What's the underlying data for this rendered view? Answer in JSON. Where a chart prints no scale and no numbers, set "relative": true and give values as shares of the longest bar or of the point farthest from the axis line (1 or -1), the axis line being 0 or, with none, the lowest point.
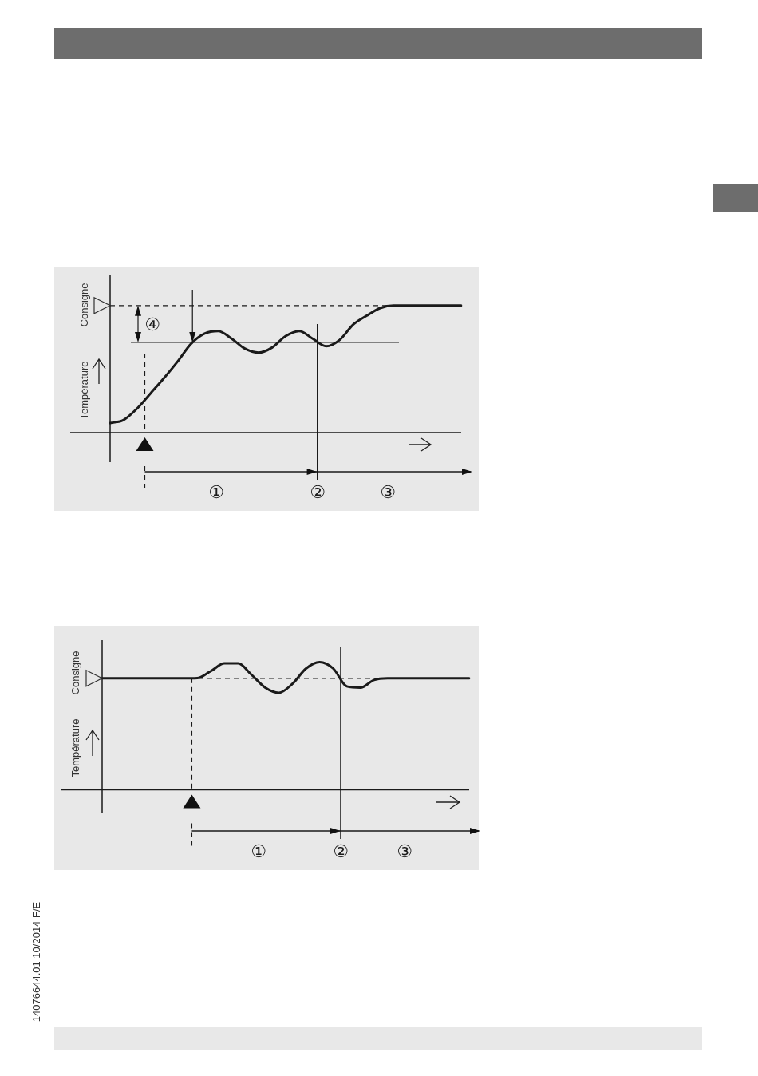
{
  "chart_data": [
    {
      "type": "line",
      "relative": true,
      "ylabel": "Température",
      "categories": [
        null,
        null,
        null,
        null,
        null,
        null,
        null,
        null,
        null,
        null,
        null,
        null,
        null,
        null,
        null,
        null,
        null,
        null,
        null,
        null,
        null,
        null,
        null,
        null,
        null,
        null,
        null
      ],
      "series": [
        {
          "color": "#1a1a1a",
          "values": [
            0.075,
            0.1,
            0.19,
            0.31,
            0.43,
            0.56,
            0.7,
            0.78,
            0.8,
            0.74,
            0.66,
            0.63,
            0.67,
            0.76,
            0.8,
            0.74,
            0.68,
            0.73,
            0.85,
            0.92,
            0.98,
            1.0,
            1.0,
            1.0,
            1.0,
            1.0,
            1.0
          ]
        }
      ],
      "ref_lines": [
        {
          "axis": "y",
          "value": 1,
          "label": "Consigne",
          "line_style": "dashed",
          "color": "#1a1a1a"
        },
        {
          "axis": "y",
          "value": 0.71,
          "line_style": "solid",
          "color": "#1a1a1a"
        }
      ],
      "annotations": [
        "①",
        "②",
        "③",
        "④"
      ],
      "marker": "none",
      "line_style": "solid",
      "legend": false
    },
    {
      "type": "line",
      "relative": true,
      "ylabel": "Température",
      "categories": [
        null,
        null,
        null,
        null,
        null,
        null,
        null,
        null,
        null,
        null,
        null,
        null,
        null,
        null,
        null,
        null,
        null,
        null,
        null,
        null,
        null,
        null,
        null,
        null,
        null,
        null,
        null,
        null
      ],
      "series": [
        {
          "color": "#1a1a1a",
          "values": [
            0.873,
            0.873,
            0.873,
            0.873,
            0.873,
            0.873,
            0.873,
            0.875,
            0.93,
            0.99,
            0.99,
            0.9,
            0.8,
            0.76,
            0.83,
            0.95,
            1.0,
            0.95,
            0.81,
            0.8,
            0.86,
            0.873,
            0.873,
            0.873,
            0.873,
            0.873,
            0.873,
            0.873
          ]
        }
      ],
      "ref_lines": [
        {
          "axis": "y",
          "value": 0.873,
          "label": "Consigne",
          "line_style": "dashed",
          "color": "#1a1a1a"
        }
      ],
      "annotations": [
        "①",
        "②",
        "③",
        "14076644.01 10/2014 F/E"
      ],
      "marker": "none",
      "line_style": "solid",
      "legend": false
    }
  ]
}
